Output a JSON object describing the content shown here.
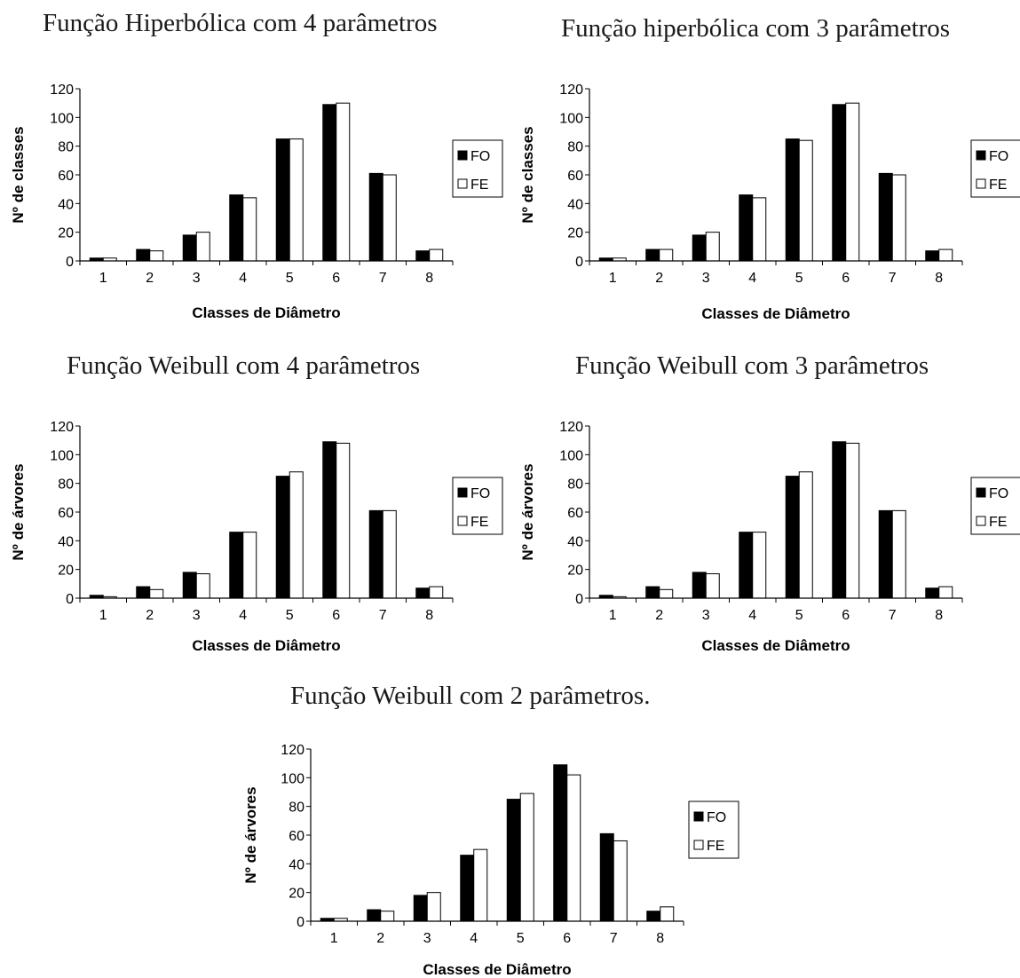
{
  "chart_data": [
    {
      "type": "bar",
      "title": "Função Hiperbólica com 4 parâmetros",
      "xlabel": "Classes de Diâmetro",
      "ylabel": "Nº de classes",
      "categories": [
        "1",
        "2",
        "3",
        "4",
        "5",
        "6",
        "7",
        "8"
      ],
      "ylim": [
        0,
        120
      ],
      "yticks": [
        0,
        20,
        40,
        60,
        80,
        100,
        120
      ],
      "grid": false,
      "legend": "right",
      "series": [
        {
          "name": "FO",
          "color": "#000000",
          "values": [
            2,
            8,
            18,
            46,
            85,
            109,
            61,
            7
          ]
        },
        {
          "name": "FE",
          "color": "#ffffff",
          "values": [
            2,
            7,
            20,
            44,
            85,
            110,
            60,
            8
          ]
        }
      ]
    },
    {
      "type": "bar",
      "title": "Função hiperbólica com 3 parâmetros",
      "xlabel": "Classes de Diâmetro",
      "ylabel": "Nº de classes",
      "categories": [
        "1",
        "2",
        "3",
        "4",
        "5",
        "6",
        "7",
        "8"
      ],
      "ylim": [
        0,
        120
      ],
      "yticks": [
        0,
        20,
        40,
        60,
        80,
        100,
        120
      ],
      "grid": false,
      "legend": "right",
      "series": [
        {
          "name": "FO",
          "color": "#000000",
          "values": [
            2,
            8,
            18,
            46,
            85,
            109,
            61,
            7
          ]
        },
        {
          "name": "FE",
          "color": "#ffffff",
          "values": [
            2,
            8,
            20,
            44,
            84,
            110,
            60,
            8
          ]
        }
      ]
    },
    {
      "type": "bar",
      "title": "Função Weibull com 4 parâmetros",
      "xlabel": "Classes de Diâmetro",
      "ylabel": "Nº de árvores",
      "categories": [
        "1",
        "2",
        "3",
        "4",
        "5",
        "6",
        "7",
        "8"
      ],
      "ylim": [
        0,
        120
      ],
      "yticks": [
        0,
        20,
        40,
        60,
        80,
        100,
        120
      ],
      "grid": false,
      "legend": "right",
      "series": [
        {
          "name": "FO",
          "color": "#000000",
          "values": [
            2,
            8,
            18,
            46,
            85,
            109,
            61,
            7
          ]
        },
        {
          "name": "FE",
          "color": "#ffffff",
          "values": [
            1,
            6,
            17,
            46,
            88,
            108,
            61,
            8
          ]
        }
      ]
    },
    {
      "type": "bar",
      "title": "Função Weibull com 3 parâmetros",
      "xlabel": "Classes de Diâmetro",
      "ylabel": "Nº de árvores",
      "categories": [
        "1",
        "2",
        "3",
        "4",
        "5",
        "6",
        "7",
        "8"
      ],
      "ylim": [
        0,
        120
      ],
      "yticks": [
        0,
        20,
        40,
        60,
        80,
        100,
        120
      ],
      "grid": false,
      "legend": "right",
      "series": [
        {
          "name": "FO",
          "color": "#000000",
          "values": [
            2,
            8,
            18,
            46,
            85,
            109,
            61,
            7
          ]
        },
        {
          "name": "FE",
          "color": "#ffffff",
          "values": [
            1,
            6,
            17,
            46,
            88,
            108,
            61,
            8
          ]
        }
      ]
    },
    {
      "type": "bar",
      "title": "Função Weibull com 2 parâmetros.",
      "xlabel": "Classes de Diâmetro",
      "ylabel": "Nº de árvores",
      "categories": [
        "1",
        "2",
        "3",
        "4",
        "5",
        "6",
        "7",
        "8"
      ],
      "ylim": [
        0,
        120
      ],
      "yticks": [
        0,
        20,
        40,
        60,
        80,
        100,
        120
      ],
      "grid": false,
      "legend": "right",
      "series": [
        {
          "name": "FO",
          "color": "#000000",
          "values": [
            2,
            8,
            18,
            46,
            85,
            109,
            61,
            7
          ]
        },
        {
          "name": "FE",
          "color": "#ffffff",
          "values": [
            2,
            7,
            20,
            50,
            89,
            102,
            56,
            10
          ]
        }
      ]
    }
  ]
}
